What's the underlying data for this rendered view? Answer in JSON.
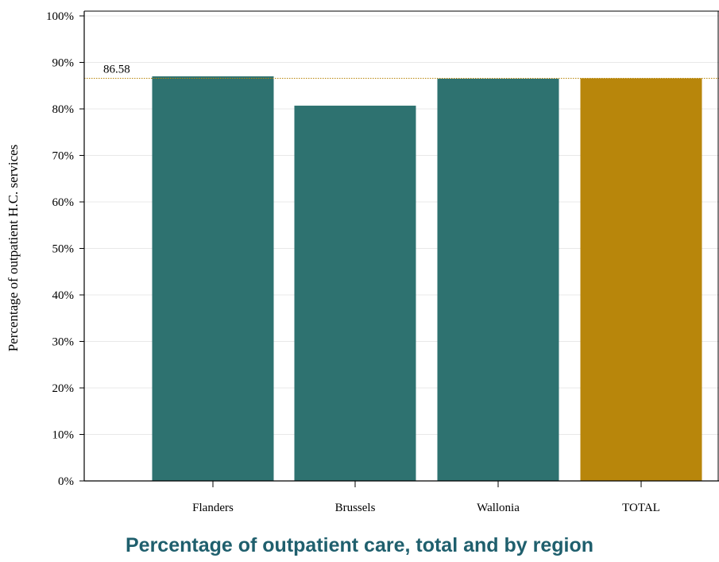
{
  "chart_data": {
    "type": "bar",
    "categories": [
      "Flanders",
      "Brussels",
      "Wallonia",
      "TOTAL"
    ],
    "values": [
      87.0,
      80.7,
      86.5,
      86.58
    ],
    "ylabel": "Percentage of outpatient H.C. services",
    "xlabel": "",
    "ylim": [
      0,
      100
    ],
    "yticks": [
      0,
      10,
      20,
      30,
      40,
      50,
      60,
      70,
      80,
      90,
      100
    ],
    "ytick_labels": [
      "0%",
      "10%",
      "20%",
      "30%",
      "40%",
      "50%",
      "60%",
      "70%",
      "80%",
      "90%",
      "100%"
    ],
    "reference_line": {
      "value": 86.58,
      "label": "86.58"
    },
    "grid": true,
    "colors": {
      "regions": "#2e7270",
      "total": "#b8860b",
      "reference_line": "#b8860b",
      "grid": "#e8e8e8"
    }
  },
  "caption": "Percentage of outpatient care, total and by region"
}
